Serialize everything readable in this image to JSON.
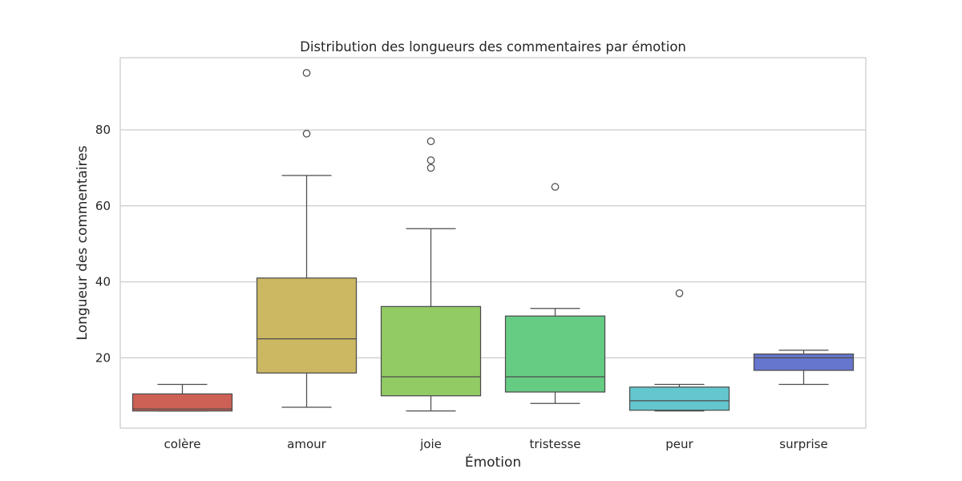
{
  "chart_data": {
    "type": "box",
    "title": "Distribution des longueurs des commentaires par émotion",
    "xlabel": "Émotion",
    "ylabel": "Longueur des commentaires",
    "ylim": [
      1.5,
      99
    ],
    "yticks": [
      20,
      40,
      60,
      80
    ],
    "grid": true,
    "legend": "none",
    "categories": [
      "colère",
      "amour",
      "joie",
      "tristesse",
      "peur",
      "surprise"
    ],
    "colors": [
      "#CD6155",
      "#CCB762",
      "#92CB64",
      "#66CC84",
      "#64C6CE",
      "#6676CE"
    ],
    "boxes": [
      {
        "whisker_low": 6,
        "q1": 6,
        "median": 6.5,
        "q3": 10.5,
        "whisker_high": 13,
        "outliers": []
      },
      {
        "whisker_low": 7,
        "q1": 16,
        "median": 25,
        "q3": 41,
        "whisker_high": 68,
        "outliers": [
          79,
          95
        ]
      },
      {
        "whisker_low": 6,
        "q1": 10,
        "median": 15,
        "q3": 33.5,
        "whisker_high": 54,
        "outliers": [
          70,
          72,
          77
        ]
      },
      {
        "whisker_low": 8,
        "q1": 11,
        "median": 15,
        "q3": 31,
        "whisker_high": 33,
        "outliers": [
          65
        ]
      },
      {
        "whisker_low": 6,
        "q1": 6.2,
        "median": 8.7,
        "q3": 12.3,
        "whisker_high": 13,
        "outliers": [
          37
        ]
      },
      {
        "whisker_low": 13,
        "q1": 16.7,
        "median": 20,
        "q3": 21,
        "whisker_high": 22,
        "outliers": []
      }
    ]
  }
}
